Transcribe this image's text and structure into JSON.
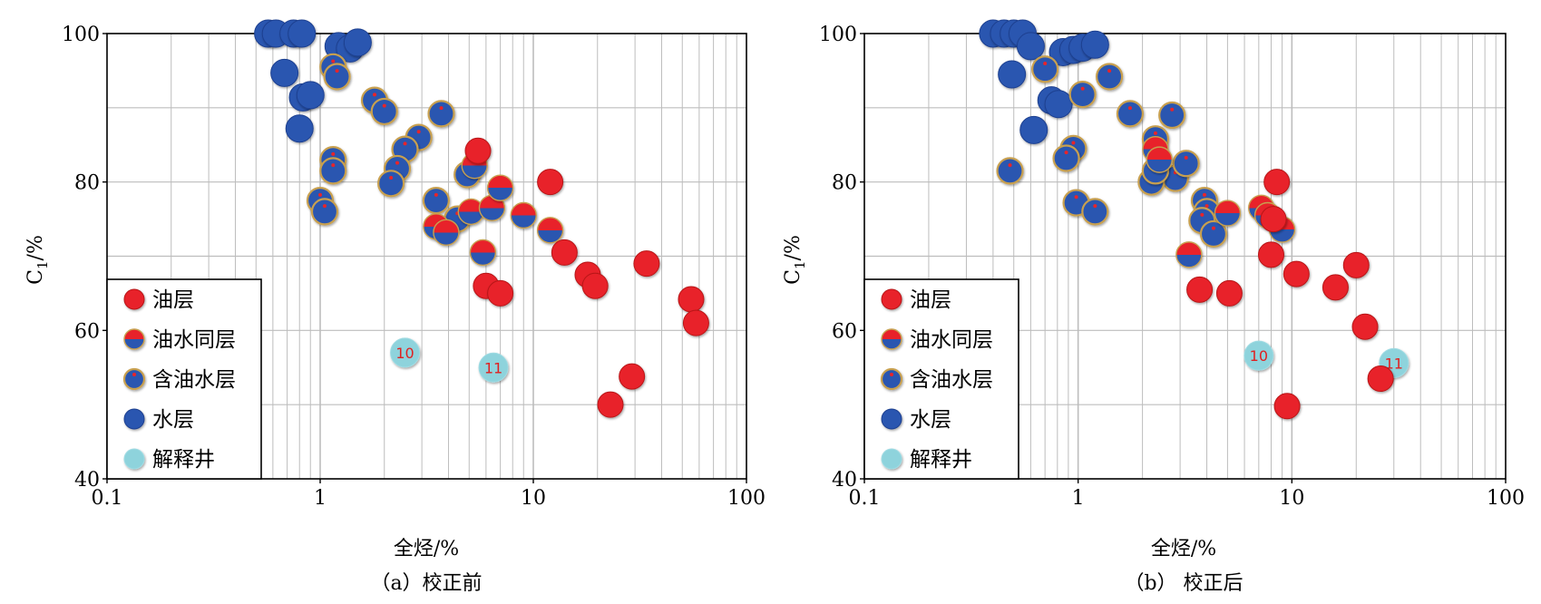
{
  "colors": {
    "oil": "#e8242a",
    "water": "#2b56b0",
    "explain": "#8ed3dc",
    "ring": "#c8a050",
    "grid": "#bdbdbd",
    "label": "#e02020"
  },
  "chart_data": [
    {
      "type": "scatter",
      "title": "",
      "caption": "（a）校正前",
      "xlabel": "全烃/%",
      "ylabel": "C1/%",
      "ylabel_main": "C",
      "ylabel_sub": "1",
      "ylabel_unit": "/%",
      "xscale": "log",
      "xlim": [
        0.1,
        100
      ],
      "ylim": [
        40,
        100
      ],
      "xticks": [
        "0.1",
        "1",
        "10",
        "100"
      ],
      "yticks": [
        "40",
        "60",
        "80",
        "100"
      ],
      "grid": true,
      "legend_position": "bottom-left",
      "legend": [
        {
          "name": "油层",
          "kind": "oil"
        },
        {
          "name": "油水同层",
          "kind": "mixed"
        },
        {
          "name": "含油水层",
          "kind": "oilwater"
        },
        {
          "name": "水层",
          "kind": "water"
        },
        {
          "name": "解释井",
          "kind": "explain"
        }
      ],
      "series": [
        {
          "name": "油层",
          "kind": "oil",
          "points": [
            [
              12,
              80
            ],
            [
              14,
              70.5
            ],
            [
              18,
              67.5
            ],
            [
              19.5,
              66
            ],
            [
              23,
              50
            ],
            [
              29,
              53.8
            ],
            [
              34,
              69
            ],
            [
              55,
              64.2
            ],
            [
              58,
              61
            ],
            [
              6,
              66
            ],
            [
              7,
              65
            ],
            [
              5.5,
              84.2
            ]
          ]
        },
        {
          "name": "油水同层",
          "kind": "mixed",
          "points": [
            [
              5.1,
              76
            ],
            [
              6.4,
              76.5
            ],
            [
              7,
              79.2
            ],
            [
              9,
              75.5
            ],
            [
              12,
              73.5
            ],
            [
              5.8,
              70.5
            ],
            [
              3.5,
              74
            ],
            [
              3.9,
              73.2
            ],
            [
              5.3,
              82.2
            ]
          ]
        },
        {
          "name": "含油水层",
          "kind": "oilwater",
          "points": [
            [
              1.15,
              95.5
            ],
            [
              1.2,
              94.2
            ],
            [
              1.8,
              91
            ],
            [
              2,
              89.5
            ],
            [
              3.7,
              89.2
            ],
            [
              2.9,
              86
            ],
            [
              2.5,
              84.4
            ],
            [
              1.15,
              83
            ],
            [
              1.15,
              81.5
            ],
            [
              2.3,
              81.8
            ],
            [
              2.15,
              79.8
            ],
            [
              1,
              77.5
            ],
            [
              1.05,
              76
            ],
            [
              3.5,
              77.5
            ],
            [
              4.9,
              81
            ],
            [
              4.4,
              75
            ]
          ]
        },
        {
          "name": "水层",
          "kind": "water",
          "points": [
            [
              0.57,
              100
            ],
            [
              0.62,
              100
            ],
            [
              0.75,
              100
            ],
            [
              0.82,
              100
            ],
            [
              1.22,
              98.3
            ],
            [
              1.38,
              98
            ],
            [
              1.5,
              98.8
            ],
            [
              0.68,
              94.7
            ],
            [
              0.83,
              91.4
            ],
            [
              0.9,
              91.7
            ],
            [
              0.8,
              87.2
            ]
          ]
        },
        {
          "name": "解释井",
          "kind": "explain",
          "points": [
            [
              2.5,
              57,
              "10"
            ],
            [
              6.5,
              55,
              "11"
            ]
          ]
        }
      ]
    },
    {
      "type": "scatter",
      "title": "",
      "caption": "（b） 校正后",
      "xlabel": "全烃/%",
      "ylabel": "C1/%",
      "ylabel_main": "C",
      "ylabel_sub": "1",
      "ylabel_unit": "/%",
      "xscale": "log",
      "xlim": [
        0.1,
        100
      ],
      "ylim": [
        40,
        100
      ],
      "xticks": [
        "0.1",
        "1",
        "10",
        "100"
      ],
      "yticks": [
        "40",
        "60",
        "80",
        "100"
      ],
      "grid": true,
      "legend_position": "bottom-left",
      "legend": [
        {
          "name": "油层",
          "kind": "oil"
        },
        {
          "name": "油水同层",
          "kind": "mixed"
        },
        {
          "name": "含油水层",
          "kind": "oilwater"
        },
        {
          "name": "水层",
          "kind": "water"
        },
        {
          "name": "解释井",
          "kind": "explain"
        }
      ],
      "series": [
        {
          "name": "油层",
          "kind": "oil",
          "points": [
            [
              8.5,
              80
            ],
            [
              3.7,
              65.5
            ],
            [
              5.1,
              65
            ],
            [
              8,
              70.2
            ],
            [
              10.5,
              67.6
            ],
            [
              16,
              65.8
            ],
            [
              20,
              68.8
            ],
            [
              22,
              60.5
            ],
            [
              26,
              53.5
            ],
            [
              9.5,
              49.8
            ],
            [
              8.2,
              75
            ]
          ]
        },
        {
          "name": "油水同层",
          "kind": "mixed",
          "points": [
            [
              3.3,
              70.2
            ],
            [
              5,
              75.8
            ],
            [
              7.2,
              76.5
            ],
            [
              7.7,
              75.5
            ],
            [
              9,
              73.6
            ],
            [
              2.3,
              84.4
            ],
            [
              2.4,
              83
            ]
          ]
        },
        {
          "name": "含油水层",
          "kind": "oilwater",
          "points": [
            [
              0.7,
              95.2
            ],
            [
              1.05,
              91.8
            ],
            [
              1.4,
              94.2
            ],
            [
              1.75,
              89.2
            ],
            [
              2.75,
              89
            ],
            [
              2.3,
              85.8
            ],
            [
              2.85,
              80.5
            ],
            [
              3.2,
              82.5
            ],
            [
              0.95,
              84.5
            ],
            [
              0.88,
              83.2
            ],
            [
              2.2,
              80
            ],
            [
              2.3,
              81.5
            ],
            [
              0.98,
              77.2
            ],
            [
              1.2,
              76
            ],
            [
              3.9,
              77.5
            ],
            [
              4,
              76
            ],
            [
              3.8,
              74.8
            ],
            [
              4.3,
              73
            ],
            [
              0.48,
              81.5
            ]
          ]
        },
        {
          "name": "水层",
          "kind": "water",
          "points": [
            [
              0.4,
              100
            ],
            [
              0.45,
              100
            ],
            [
              0.5,
              100
            ],
            [
              0.55,
              100
            ],
            [
              0.6,
              98.3
            ],
            [
              0.49,
              94.5
            ],
            [
              0.75,
              91
            ],
            [
              0.81,
              90.5
            ],
            [
              0.85,
              97.5
            ],
            [
              0.95,
              97.8
            ],
            [
              1.05,
              98.1
            ],
            [
              1.2,
              98.5
            ],
            [
              0.62,
              87
            ]
          ]
        },
        {
          "name": "解释井",
          "kind": "explain",
          "points": [
            [
              7,
              56.6,
              "10"
            ],
            [
              30,
              55.6,
              "11"
            ]
          ]
        }
      ]
    }
  ]
}
